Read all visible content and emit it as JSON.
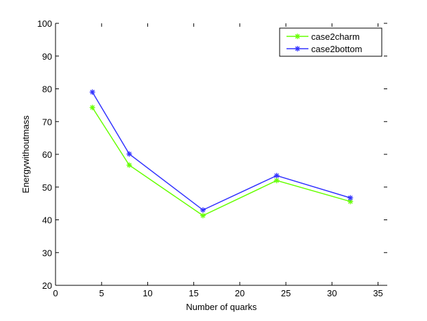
{
  "chart_data": {
    "type": "line",
    "title": "",
    "xlabel": "Number of quarks",
    "ylabel": "Energywithoutmass",
    "xlim": [
      0,
      36
    ],
    "ylim": [
      20,
      100
    ],
    "xticks": [
      0,
      5,
      10,
      15,
      20,
      25,
      30,
      35
    ],
    "yticks": [
      20,
      30,
      40,
      50,
      60,
      70,
      80,
      90,
      100
    ],
    "grid": false,
    "legend_position": "top-right",
    "marker": "asterisk",
    "x": [
      4,
      8,
      16,
      24,
      32
    ],
    "series": [
      {
        "name": "case2charm",
        "color": "#66ff00",
        "values": [
          74.3,
          56.7,
          41.3,
          52.0,
          45.6
        ]
      },
      {
        "name": "case2bottom",
        "color": "#3333ff",
        "values": [
          79.0,
          60.1,
          43.0,
          53.5,
          46.7
        ]
      }
    ]
  }
}
